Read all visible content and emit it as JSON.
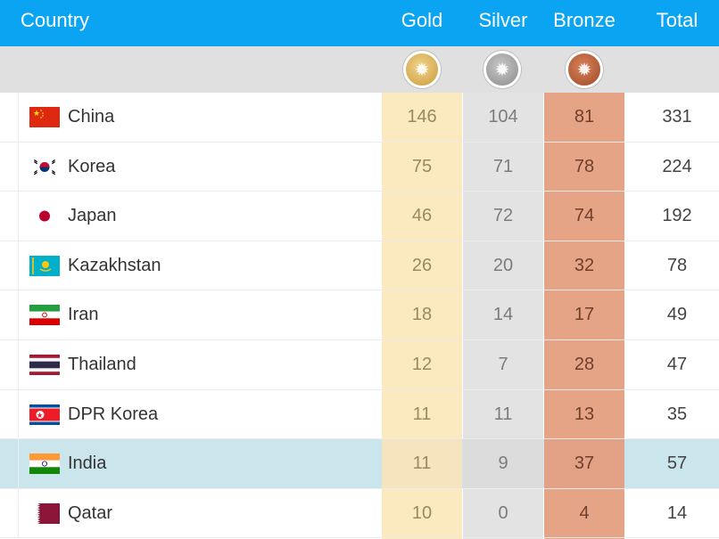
{
  "header": {
    "country": "Country",
    "gold": "Gold",
    "silver": "Silver",
    "bronze": "Bronze",
    "total": "Total"
  },
  "colors": {
    "header_bg": "#0aa4f2",
    "gold_col": "#fbe9c0",
    "silver_col": "#e3e3e3",
    "bronze_col": "#e6a487",
    "highlight_row": "#cbe5ec"
  },
  "medal_icons": [
    "gold-medal-icon",
    "silver-medal-icon",
    "bronze-medal-icon"
  ],
  "rows": [
    {
      "country": "China",
      "gold": "146",
      "silver": "104",
      "bronze": "81",
      "total": "331",
      "flag": "china-flag-icon"
    },
    {
      "country": "Korea",
      "gold": "75",
      "silver": "71",
      "bronze": "78",
      "total": "224",
      "flag": "korea-flag-icon"
    },
    {
      "country": "Japan",
      "gold": "46",
      "silver": "72",
      "bronze": "74",
      "total": "192",
      "flag": "japan-flag-icon"
    },
    {
      "country": "Kazakhstan",
      "gold": "26",
      "silver": "20",
      "bronze": "32",
      "total": "78",
      "flag": "kazakhstan-flag-icon"
    },
    {
      "country": "Iran",
      "gold": "18",
      "silver": "14",
      "bronze": "17",
      "total": "49",
      "flag": "iran-flag-icon"
    },
    {
      "country": "Thailand",
      "gold": "12",
      "silver": "7",
      "bronze": "28",
      "total": "47",
      "flag": "thailand-flag-icon"
    },
    {
      "country": "DPR Korea",
      "gold": "11",
      "silver": "11",
      "bronze": "13",
      "total": "35",
      "flag": "dpr-korea-flag-icon"
    },
    {
      "country": "India",
      "gold": "11",
      "silver": "9",
      "bronze": "37",
      "total": "57",
      "flag": "india-flag-icon",
      "highlighted": true
    },
    {
      "country": "Qatar",
      "gold": "10",
      "silver": "0",
      "bronze": "4",
      "total": "14",
      "flag": "qatar-flag-icon"
    }
  ]
}
